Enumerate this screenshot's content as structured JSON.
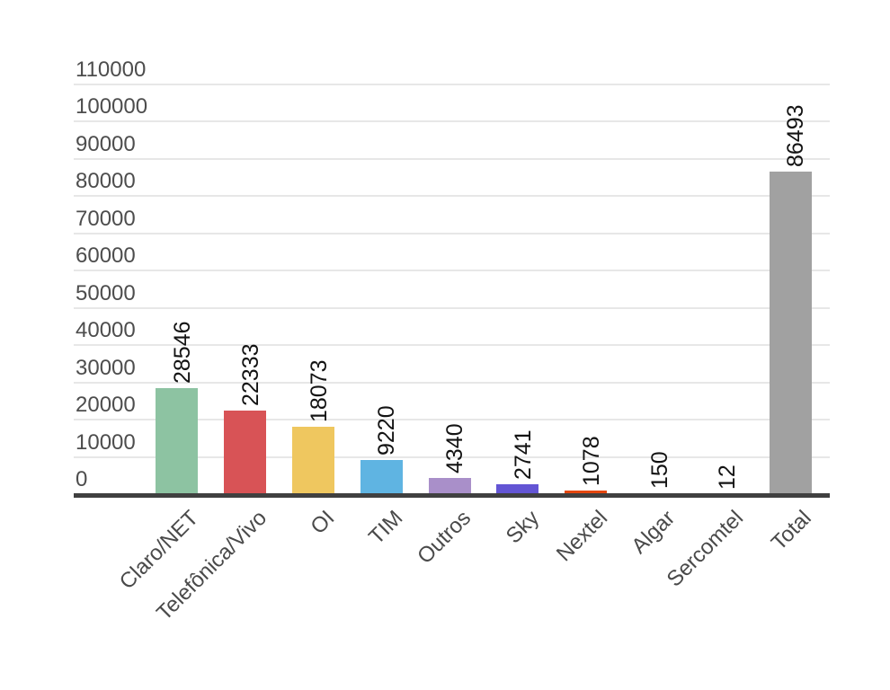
{
  "chart_data": {
    "type": "bar",
    "title": "",
    "xlabel": "",
    "ylabel": "",
    "categories": [
      "Claro/NET",
      "Telefônica/Vivo",
      "OI",
      "TIM",
      "Outros",
      "Sky",
      "Nextel",
      "Algar",
      "Sercomtel",
      "Total"
    ],
    "values": [
      28546,
      22333,
      18073,
      9220,
      4340,
      2741,
      1078,
      150,
      12,
      86493
    ],
    "value_labels": [
      "28546",
      "22333",
      "18073",
      "9220",
      "4340",
      "2741",
      "1078",
      "150",
      "12",
      "86493"
    ],
    "bar_colors": [
      "#8dc3a2",
      "#d85356",
      "#efc75f",
      "#5fb4e2",
      "#a98fc9",
      "#6355d4",
      "#e5470e",
      "#d5648f",
      "#45b6b0",
      "#a1a1a1"
    ],
    "yticks": [
      0,
      10000,
      20000,
      30000,
      40000,
      50000,
      60000,
      70000,
      80000,
      90000,
      100000,
      110000
    ],
    "ytick_labels": [
      "0",
      "10000",
      "20000",
      "30000",
      "40000",
      "50000",
      "60000",
      "70000",
      "80000",
      "90000",
      "100000",
      "110000"
    ],
    "ylim": [
      0,
      110000
    ],
    "grid": true,
    "legend": "none",
    "value_label_rotation": -90,
    "x_label_rotation": -45
  },
  "style": {
    "background": "#ffffff",
    "gridline_color": "#e7e7e7",
    "axis_line_color": "#404040",
    "axis_label_color": "#4d4d4d",
    "x_label_color": "#4a4a4a",
    "value_label_color": "#131313"
  }
}
